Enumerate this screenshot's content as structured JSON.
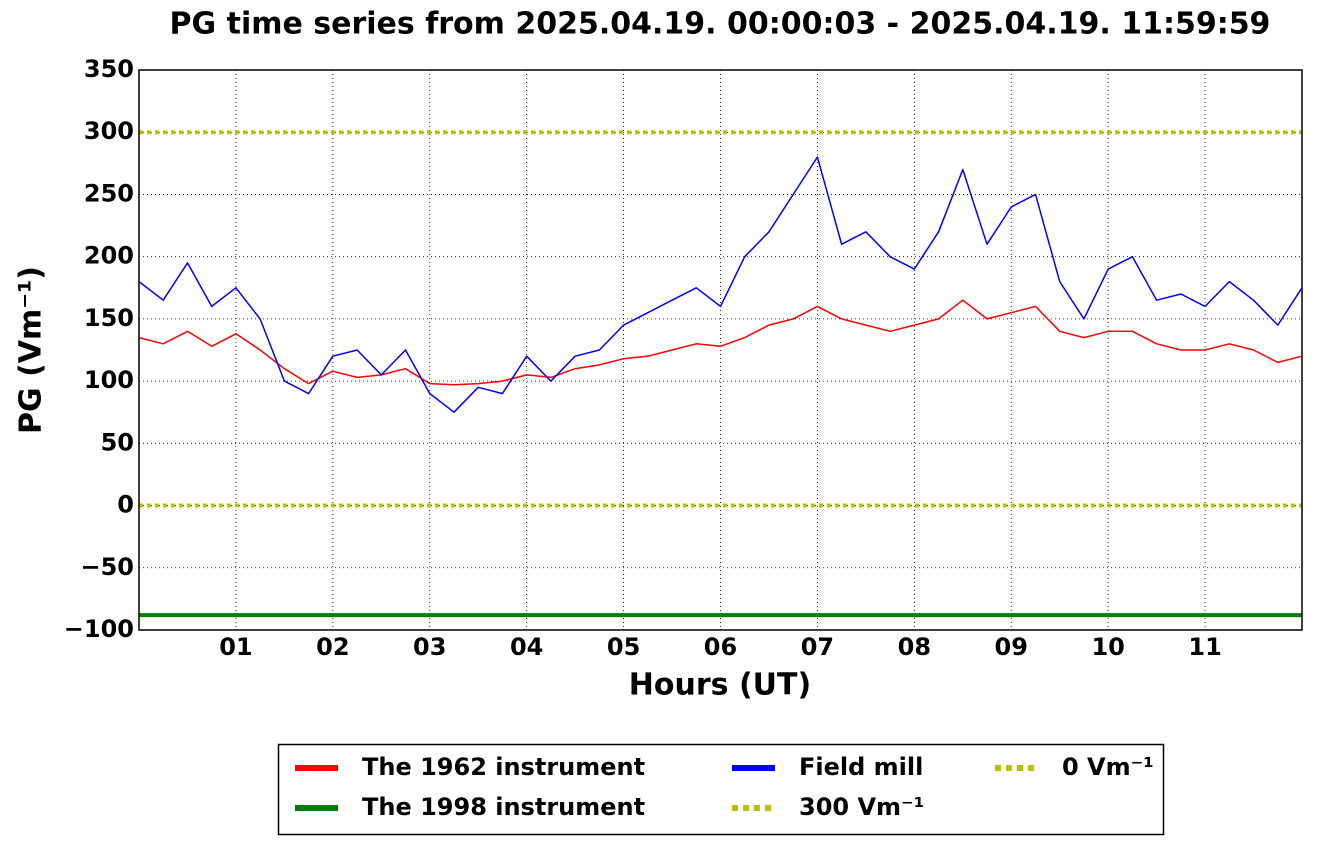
{
  "chart_data": {
    "type": "line",
    "title": "PG time series from 2025.04.19. 00:00:03 - 2025.04.19. 11:59:59",
    "x_label": "Hours (UT)",
    "y_label": "PG (Vm⁻¹)",
    "x": [
      0,
      0.25,
      0.5,
      0.75,
      1,
      1.25,
      1.5,
      1.75,
      2,
      2.25,
      2.5,
      2.75,
      3,
      3.25,
      3.5,
      3.75,
      4,
      4.25,
      4.5,
      4.75,
      5,
      5.25,
      5.5,
      5.75,
      6,
      6.25,
      6.5,
      6.75,
      7,
      7.25,
      7.5,
      7.75,
      8,
      8.25,
      8.5,
      8.75,
      9,
      9.25,
      9.5,
      9.75,
      10,
      10.25,
      10.5,
      10.75,
      11,
      11.25,
      11.5,
      11.75,
      12
    ],
    "series": [
      {
        "name": "The 1962 instrument",
        "color": "#ff0000",
        "values": [
          135,
          130,
          140,
          128,
          138,
          125,
          110,
          98,
          108,
          103,
          105,
          110,
          98,
          97,
          98,
          100,
          105,
          103,
          110,
          113,
          118,
          120,
          125,
          130,
          128,
          135,
          145,
          150,
          160,
          150,
          145,
          140,
          145,
          150,
          165,
          150,
          155,
          160,
          140,
          135,
          140,
          140,
          130,
          125,
          125,
          130,
          125,
          115,
          120
        ]
      },
      {
        "name": "The 1998 instrument",
        "color": "#008000",
        "values": [
          -88,
          -88,
          -88,
          -88,
          -88,
          -88,
          -88,
          -88,
          -88,
          -88,
          -88,
          -88,
          -88,
          -88,
          -88,
          -88,
          -88,
          -88,
          -88,
          -88,
          -88,
          -88,
          -88,
          -88,
          -88,
          -88,
          -88,
          -88,
          -88,
          -88,
          -88,
          -88,
          -88,
          -88,
          -88,
          -88,
          -88,
          -88,
          -88,
          -88,
          -88,
          -88,
          -88,
          -88,
          -88,
          -88,
          -88,
          -88,
          -88
        ]
      },
      {
        "name": "Field mill",
        "color": "#0000ff",
        "values": [
          180,
          165,
          195,
          160,
          175,
          150,
          100,
          90,
          120,
          125,
          105,
          125,
          90,
          75,
          95,
          90,
          120,
          100,
          120,
          125,
          145,
          155,
          165,
          175,
          160,
          200,
          220,
          250,
          280,
          210,
          220,
          200,
          190,
          220,
          270,
          210,
          240,
          250,
          180,
          150,
          190,
          200,
          165,
          170,
          160,
          180,
          165,
          145,
          175
        ]
      }
    ],
    "hlines": [
      {
        "name": "300 Vm⁻¹",
        "value": 300,
        "color": "#bfbf00"
      },
      {
        "name": "0 Vm⁻¹",
        "value": 0,
        "color": "#bfbf00"
      }
    ],
    "xlim": [
      0,
      12
    ],
    "xticks": [
      {
        "value": 1,
        "label": "01"
      },
      {
        "value": 2,
        "label": "02"
      },
      {
        "value": 3,
        "label": "03"
      },
      {
        "value": 4,
        "label": "04"
      },
      {
        "value": 5,
        "label": "05"
      },
      {
        "value": 6,
        "label": "06"
      },
      {
        "value": 7,
        "label": "07"
      },
      {
        "value": 8,
        "label": "08"
      },
      {
        "value": 9,
        "label": "09"
      },
      {
        "value": 10,
        "label": "10"
      },
      {
        "value": 11,
        "label": "11"
      }
    ],
    "ylim": [
      -100,
      350
    ],
    "yticks": [
      {
        "value": -100,
        "label": "−100"
      },
      {
        "value": -50,
        "label": "−50"
      },
      0,
      50,
      100,
      150,
      200,
      250,
      300,
      350
    ],
    "grid": true
  }
}
